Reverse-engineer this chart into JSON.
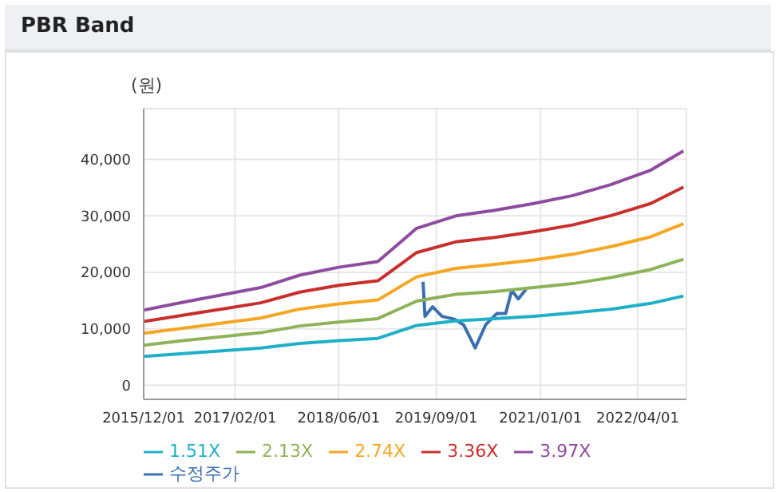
{
  "chart_data": {
    "type": "line",
    "title": "PBR Band",
    "ylabel": "(원)",
    "x": [
      "2015-12-01",
      "2016-06-01",
      "2016-12-01",
      "2017-06-01",
      "2017-12-01",
      "2018-06-01",
      "2018-12-01",
      "2019-06-01",
      "2019-12-01",
      "2020-06-01",
      "2020-12-01",
      "2021-06-01",
      "2021-12-01",
      "2022-06-01",
      "2022-11-01"
    ],
    "series": [
      {
        "name": "수정주가",
        "color": "#3a6fb0",
        "x": [
          "2019-07-01",
          "2019-07-10",
          "2019-08-15",
          "2019-09-28",
          "2019-11-25",
          "2020-01-07",
          "2020-03-01",
          "2020-04-19",
          "2020-06-10",
          "2020-07-22",
          "2020-08-19",
          "2020-09-19",
          "2020-10-25"
        ],
        "values": [
          18300,
          12200,
          13900,
          12200,
          11700,
          10700,
          6600,
          10700,
          12700,
          12700,
          16800,
          15300,
          17000
        ]
      },
      {
        "name": "1.51X",
        "color": "#1fb0c8",
        "values": [
          5100,
          5600,
          6100,
          6600,
          7400,
          7900,
          8300,
          10600,
          11400,
          11800,
          12200,
          12800,
          13500,
          14500,
          15800
        ]
      },
      {
        "name": "2.13X",
        "color": "#8db35a",
        "values": [
          7100,
          7900,
          8600,
          9300,
          10500,
          11200,
          11800,
          14900,
          16100,
          16600,
          17300,
          18000,
          19100,
          20500,
          22300
        ]
      },
      {
        "name": "2.74X",
        "color": "#f5a623",
        "values": [
          9200,
          10100,
          11000,
          11900,
          13500,
          14400,
          15100,
          19200,
          20700,
          21400,
          22200,
          23200,
          24600,
          26300,
          28600
        ]
      },
      {
        "name": "3.36X",
        "color": "#c8302e",
        "values": [
          11300,
          12400,
          13500,
          14600,
          16500,
          17700,
          18500,
          23500,
          25400,
          26200,
          27200,
          28400,
          30100,
          32200,
          35100
        ]
      },
      {
        "name": "3.97X",
        "color": "#8e4c9e",
        "values": [
          13300,
          14700,
          16000,
          17300,
          19500,
          20900,
          21900,
          27800,
          30000,
          31000,
          32200,
          33600,
          35600,
          38100,
          41500
        ]
      }
    ],
    "xlim": [
      "2015-12-01",
      "2022-11-15"
    ],
    "xticks": [
      {
        "value": "2015-12-01",
        "label": "2015/12/01"
      },
      {
        "value": "2017-02-01",
        "label": "2017/02/01"
      },
      {
        "value": "2018-06-01",
        "label": "2018/06/01"
      },
      {
        "value": "2019-09-01",
        "label": "2019/09/01"
      },
      {
        "value": "2021-01-01",
        "label": "2021/01/01"
      },
      {
        "value": "2022-04-01",
        "label": "2022/04/01"
      }
    ],
    "ylim": [
      -2500,
      49000
    ],
    "yticks": [
      0,
      {
        "value": 10000,
        "label": "10,000"
      },
      {
        "value": 20000,
        "label": "20,000"
      },
      {
        "value": 30000,
        "label": "30,000"
      },
      {
        "value": 40000,
        "label": "40,000"
      }
    ],
    "grid": true,
    "legend": "bottom",
    "marker": "none",
    "line_style": "solid"
  }
}
